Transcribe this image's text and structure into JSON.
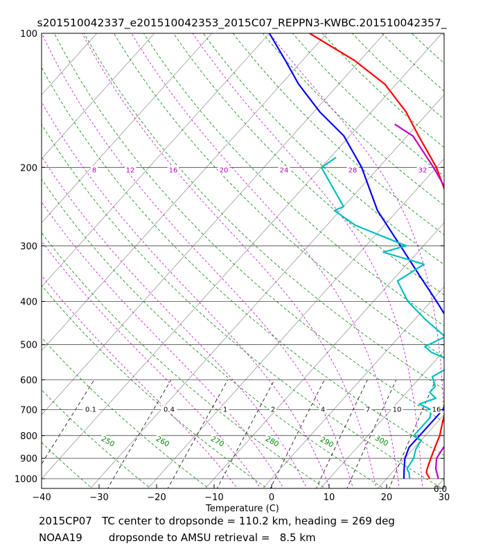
{
  "chart_data": {
    "type": "line",
    "title": "s201510042337_e201510042353_2015C07_REPPN3-KWBC.201510042357_",
    "xlabel": "Temperature (C)",
    "ylabel": "",
    "xlim": [
      -40,
      30
    ],
    "ylim": [
      1050,
      100
    ],
    "y_scale": "log",
    "skew": "skew-T log-p",
    "x_ticks": [
      "−40",
      "−30",
      "−20",
      "−10",
      "0",
      "10",
      "20",
      "30"
    ],
    "y_ticks": [
      "100",
      "200",
      "300",
      "400",
      "500",
      "600",
      "700",
      "800",
      "900",
      "1000"
    ],
    "grid": true,
    "mixing_ratio_labels": [
      "0.1",
      "0.4",
      "1",
      "2",
      "4",
      "7",
      "10",
      "16"
    ],
    "dry_adiabat_labels": [
      "250",
      "260",
      "270",
      "280",
      "290",
      "300"
    ],
    "moist_adiabat_labels": [
      "8",
      "12",
      "16",
      "20",
      "24",
      "28",
      "32"
    ],
    "corner_label": "0.0",
    "series": [
      {
        "color": "#ff0000",
        "p": [
          1000,
          970,
          950,
          900,
          850,
          800,
          750,
          700,
          650,
          600,
          550,
          500,
          450,
          400,
          350,
          300,
          250,
          200,
          170,
          150,
          130,
          115,
          100
        ],
        "t": [
          27.5,
          26,
          25.5,
          24.5,
          23.5,
          22.5,
          21,
          19.5,
          17.8,
          15.8,
          13.2,
          10.5,
          7.5,
          4,
          0.5,
          -4.5,
          -10.5,
          -20,
          -28,
          -34,
          -42,
          -51,
          -63
        ]
      },
      {
        "color": "#0000ff",
        "p": [
          1000,
          950,
          900,
          850,
          800,
          750,
          700,
          650,
          600,
          550,
          500,
          450,
          400,
          350,
          300,
          250,
          200,
          170,
          150,
          130,
          115,
          100
        ],
        "t": [
          23,
          21.5,
          20,
          19,
          19,
          19,
          19,
          17.8,
          15.8,
          13.2,
          10.5,
          7,
          1,
          -6,
          -14,
          -23.5,
          -33,
          -41,
          -49,
          -57,
          -63,
          -70
        ]
      },
      {
        "color": "#00bfbf",
        "p": [
          1000,
          970,
          950,
          900,
          860,
          820,
          800,
          780,
          750,
          730,
          700,
          680,
          660,
          640,
          620,
          590,
          570,
          550,
          520,
          505,
          480,
          440,
          400,
          360,
          330,
          310,
          300,
          270,
          250,
          245,
          200,
          190
        ],
        "t": [
          24,
          23,
          22,
          21.5,
          20.5,
          20,
          18,
          18,
          18,
          18,
          17,
          14,
          16,
          14,
          14,
          12,
          13,
          14,
          8,
          6,
          8,
          2,
          -4,
          -9,
          -7,
          -16,
          -13,
          -25,
          -31,
          -30,
          -40,
          -39
        ]
      },
      {
        "color": "#bf00bf",
        "p": [
          1000,
          950,
          900,
          850,
          820,
          800,
          780,
          760,
          720,
          680,
          650,
          600,
          550,
          500,
          480,
          440,
          410,
          390,
          350,
          320,
          300,
          250,
          200,
          170,
          160
        ],
        "t": [
          29,
          27,
          25.5,
          25,
          26.5,
          24.5,
          24,
          23.5,
          22,
          20.5,
          19.5,
          18,
          16.5,
          13.5,
          11.5,
          9,
          6.5,
          4.5,
          2.5,
          -1,
          -3.5,
          -9.5,
          -20.5,
          -29,
          -34
        ]
      }
    ]
  },
  "caption": {
    "line1": "2015CP07   TC center to dropsonde = 110.2 km, heading = 269 deg",
    "line2": "NOAA19        dropsonde to AMSU retrieval =   8.5 km"
  }
}
